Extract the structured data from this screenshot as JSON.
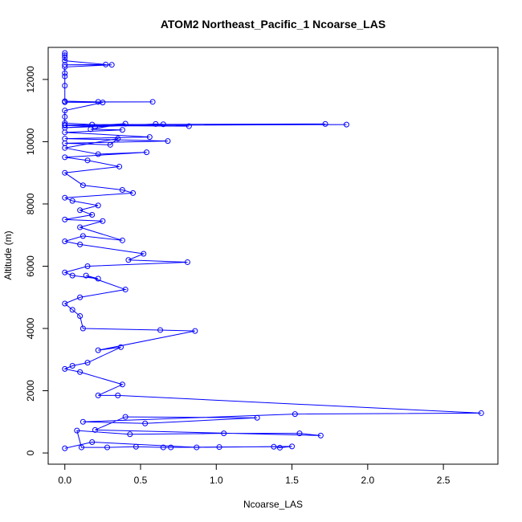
{
  "chart_data": {
    "type": "line",
    "title": "ATOM2 Northeast_Pacific_1 Ncoarse_LAS",
    "x_label": "Ncoarse_LAS",
    "y_label": "Altitude (m)",
    "markers": true,
    "series": [
      {
        "color": "#0000ff",
        "x": [
          0,
          0,
          0,
          0,
          0.27,
          0,
          0.31,
          0,
          0,
          0,
          0,
          0,
          0.22,
          0.58,
          0,
          0.25,
          0,
          0,
          0,
          0.18,
          1.72,
          0,
          1.86,
          0,
          0.82,
          0.6,
          0.2,
          0.65,
          0,
          0.4,
          0.17,
          0.38,
          0,
          0.56,
          0,
          0.68,
          0,
          0.3,
          0.35,
          0,
          0.22,
          0.54,
          0,
          0.15,
          0.36,
          0,
          0.12,
          0.38,
          0.45,
          0,
          0.05,
          0.22,
          0.1,
          0.18,
          0,
          0.25,
          0.1,
          0.38,
          0.12,
          0,
          0.1,
          0.52,
          0.42,
          0.81,
          0.15,
          0,
          0.05,
          0.22,
          0.14,
          0.4,
          0.1,
          0,
          0.05,
          0.1,
          0.12,
          0.63,
          0.86,
          0.22,
          0.37,
          0.15,
          0.05,
          0,
          0.1,
          0.38,
          0.22,
          0.35,
          2.75,
          1.52,
          0.12,
          0.53,
          1.27,
          0.4,
          0.2,
          1.69,
          1.55,
          1.05,
          0.43,
          0.08,
          0.11,
          0.28,
          0.47,
          0.65,
          0.7,
          1.02,
          1.38,
          1.42,
          1.5,
          0.87,
          0.18,
          0
        ],
        "y": [
          12850,
          12780,
          12700,
          12600,
          12480,
          12470,
          12470,
          12400,
          12200,
          12100,
          11800,
          11300,
          11280,
          11280,
          11270,
          11260,
          11000,
          10800,
          10600,
          10550,
          10570,
          10540,
          10550,
          10520,
          10500,
          10570,
          10480,
          10560,
          10450,
          10580,
          10400,
          10380,
          10300,
          10150,
          10100,
          10020,
          9950,
          9900,
          10100,
          9800,
          9600,
          9660,
          9500,
          9400,
          9200,
          9000,
          8600,
          8450,
          8350,
          8200,
          8100,
          7950,
          7800,
          7650,
          7500,
          7450,
          7250,
          6830,
          6970,
          6800,
          6700,
          6400,
          6200,
          6130,
          6000,
          5800,
          5700,
          5600,
          5700,
          5250,
          5000,
          4800,
          4600,
          4400,
          4000,
          3950,
          3920,
          3300,
          3400,
          2900,
          2800,
          2700,
          2600,
          2200,
          1850,
          1850,
          1280,
          1250,
          1000,
          950,
          1130,
          1160,
          740,
          560,
          630,
          630,
          600,
          720,
          180,
          180,
          200,
          180,
          180,
          190,
          200,
          170,
          210,
          180,
          350,
          150
        ]
      }
    ],
    "xlim": [
      -0.11,
      2.86
    ],
    "ylim": [
      -360,
      13030
    ],
    "xticks": [
      {
        "value": 0,
        "label": "0.0"
      },
      {
        "value": 0.5,
        "label": "0.5"
      },
      {
        "value": 1,
        "label": "1.0"
      },
      {
        "value": 1.5,
        "label": "1.5"
      },
      {
        "value": 2,
        "label": "2.0"
      },
      {
        "value": 2.5,
        "label": "2.5"
      }
    ],
    "yticks": [
      0,
      2000,
      4000,
      6000,
      8000,
      10000,
      12000
    ]
  }
}
